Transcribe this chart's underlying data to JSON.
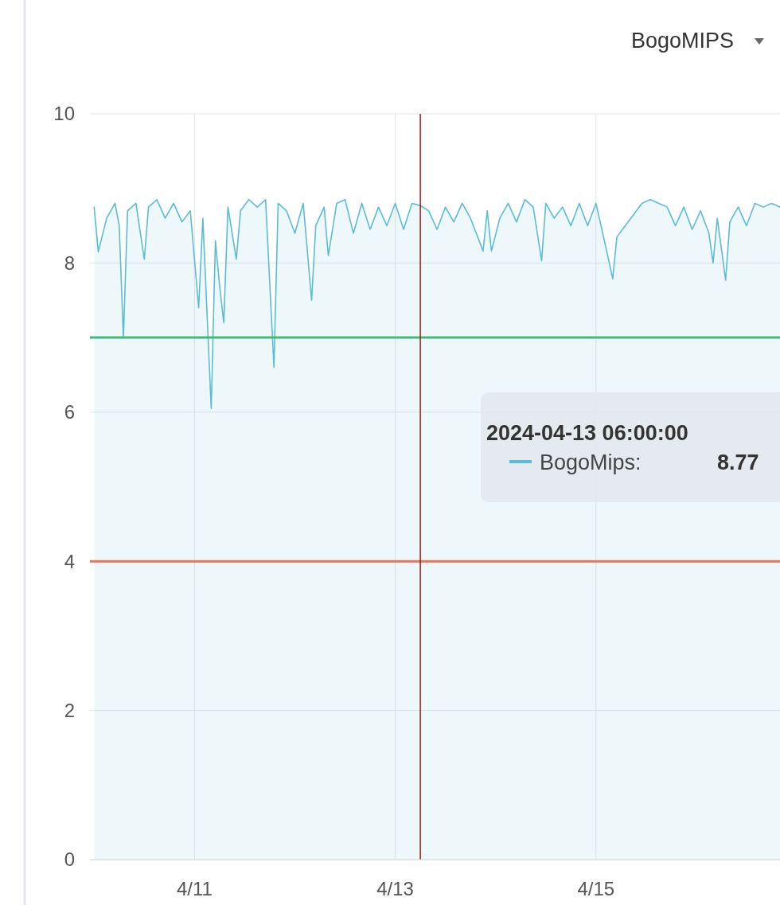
{
  "chart_data": {
    "type": "area",
    "title": "BogoMIPS",
    "xlim": [
      "2024-04-09T23:00",
      "2024-04-16T20:00"
    ],
    "ylim": [
      0,
      10
    ],
    "xticks": [
      {
        "value": "2024-04-11",
        "label": "4/11"
      },
      {
        "value": "2024-04-13",
        "label": "4/13"
      },
      {
        "value": "2024-04-15",
        "label": "4/15"
      }
    ],
    "yticks": [
      0,
      2,
      4,
      6,
      8,
      10
    ],
    "grid": true,
    "ref_lines": [
      {
        "axis": "y",
        "value": 7,
        "color": "#3dbb7a"
      },
      {
        "axis": "y",
        "value": 4,
        "color": "#e8735a"
      },
      {
        "axis": "x",
        "value": "2024-04-13T06:00",
        "color": "#9b1b1b"
      }
    ],
    "annotations": [
      "2024-04-13 06:00:00",
      "BogoMips:",
      "8.77"
    ],
    "x": [
      "2024-04-10T00:00",
      "2024-04-10T01:00",
      "2024-04-10T03:00",
      "2024-04-10T05:00",
      "2024-04-10T06:00",
      "2024-04-10T07:00",
      "2024-04-10T08:00",
      "2024-04-10T10:00",
      "2024-04-10T12:00",
      "2024-04-10T13:00",
      "2024-04-10T15:00",
      "2024-04-10T17:00",
      "2024-04-10T19:00",
      "2024-04-10T21:00",
      "2024-04-10T23:00",
      "2024-04-11T01:00",
      "2024-04-11T02:00",
      "2024-04-11T04:00",
      "2024-04-11T05:00",
      "2024-04-11T06:00",
      "2024-04-11T07:00",
      "2024-04-11T08:00",
      "2024-04-11T10:00",
      "2024-04-11T11:00",
      "2024-04-11T13:00",
      "2024-04-11T15:00",
      "2024-04-11T17:00",
      "2024-04-11T19:00",
      "2024-04-11T20:00",
      "2024-04-11T22:00",
      "2024-04-12T00:00",
      "2024-04-12T02:00",
      "2024-04-12T04:00",
      "2024-04-12T05:00",
      "2024-04-12T07:00",
      "2024-04-12T08:00",
      "2024-04-12T10:00",
      "2024-04-12T12:00",
      "2024-04-12T14:00",
      "2024-04-12T16:00",
      "2024-04-12T18:00",
      "2024-04-12T20:00",
      "2024-04-12T22:00",
      "2024-04-13T00:00",
      "2024-04-13T02:00",
      "2024-04-13T04:00",
      "2024-04-13T06:00",
      "2024-04-13T08:00",
      "2024-04-13T10:00",
      "2024-04-13T12:00",
      "2024-04-13T14:00",
      "2024-04-13T16:00",
      "2024-04-13T18:00",
      "2024-04-13T21:00",
      "2024-04-13T22:00",
      "2024-04-13T23:00",
      "2024-04-14T01:00",
      "2024-04-14T03:00",
      "2024-04-14T05:00",
      "2024-04-14T07:00",
      "2024-04-14T09:00",
      "2024-04-14T11:00",
      "2024-04-14T12:00",
      "2024-04-14T14:00",
      "2024-04-14T16:00",
      "2024-04-14T18:00",
      "2024-04-14T20:00",
      "2024-04-14T22:00",
      "2024-04-15T00:00",
      "2024-04-15T02:00",
      "2024-04-15T04:00",
      "2024-04-15T05:00",
      "2024-04-15T07:00",
      "2024-04-15T09:00",
      "2024-04-15T11:00",
      "2024-04-15T13:00",
      "2024-04-15T15:00",
      "2024-04-15T17:00",
      "2024-04-15T19:00",
      "2024-04-15T21:00",
      "2024-04-15T23:00",
      "2024-04-16T01:00",
      "2024-04-16T03:00",
      "2024-04-16T04:00",
      "2024-04-16T05:00",
      "2024-04-16T07:00",
      "2024-04-16T08:00",
      "2024-04-16T10:00",
      "2024-04-16T12:00",
      "2024-04-16T14:00",
      "2024-04-16T16:00",
      "2024-04-16T18:00",
      "2024-04-16T20:00"
    ],
    "series": [
      {
        "color": "#5bbcd6",
        "values": [
          8.75,
          8.15,
          8.6,
          8.8,
          8.5,
          7.0,
          8.7,
          8.8,
          8.05,
          8.75,
          8.85,
          8.6,
          8.8,
          8.55,
          8.7,
          7.4,
          8.6,
          6.05,
          8.3,
          7.7,
          7.2,
          8.75,
          8.05,
          8.7,
          8.85,
          8.75,
          8.85,
          6.6,
          8.8,
          8.7,
          8.4,
          8.8,
          7.5,
          8.5,
          8.75,
          8.1,
          8.8,
          8.85,
          8.4,
          8.8,
          8.45,
          8.75,
          8.5,
          8.8,
          8.45,
          8.8,
          8.77,
          8.7,
          8.45,
          8.75,
          8.55,
          8.8,
          8.6,
          8.16,
          8.7,
          8.16,
          8.6,
          8.8,
          8.55,
          8.85,
          8.75,
          8.03,
          8.8,
          8.6,
          8.75,
          8.5,
          8.8,
          8.5,
          8.8,
          8.3,
          7.79,
          8.35,
          8.5,
          8.65,
          8.8,
          8.85,
          8.8,
          8.75,
          8.5,
          8.75,
          8.45,
          8.7,
          8.4,
          8.0,
          8.6,
          7.77,
          8.55,
          8.75,
          8.5,
          8.8,
          8.75,
          8.8,
          8.75
        ]
      }
    ]
  }
}
